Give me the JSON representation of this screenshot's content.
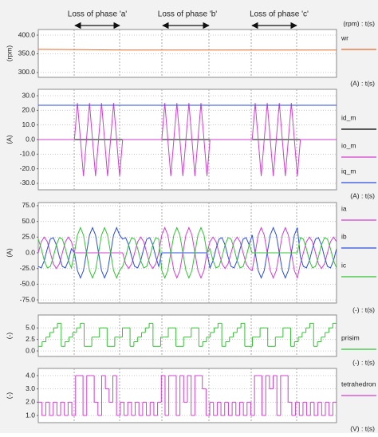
{
  "annotations": [
    "Loss of phase 'a'",
    "Loss of phase 'b'",
    "Loss of phase 'c'"
  ],
  "footer_label": "(V) : t(s)",
  "chart_data": [
    {
      "type": "line",
      "unit_label": "(rpm) : t(s)",
      "ylabel": "(rpm)",
      "ylim": [
        287,
        415
      ],
      "yticks": [
        {
          "value": 400,
          "label": "400.0"
        },
        {
          "value": 350,
          "label": "350.0"
        },
        {
          "value": 300,
          "label": "300.0"
        }
      ],
      "grid": true,
      "series": [
        {
          "name": "wr",
          "color": "#e8692a",
          "values": [
            362,
            361,
            360,
            360,
            360,
            360,
            360,
            360
          ]
        }
      ]
    },
    {
      "type": "line",
      "unit_label": "(A) : t(s)",
      "ylabel": "(A)",
      "ylim": [
        -34.4,
        34.4
      ],
      "yticks": [
        {
          "value": 30,
          "label": "30.0"
        },
        {
          "value": 20,
          "label": "20.0"
        },
        {
          "value": 10,
          "label": "10.0"
        },
        {
          "value": 0,
          "label": "0.0"
        },
        {
          "value": -10,
          "label": "-10.0"
        },
        {
          "value": -20,
          "label": "-20.0"
        },
        {
          "value": -30,
          "label": "-30.0"
        }
      ],
      "grid": true,
      "series": [
        {
          "name": "id_m",
          "color": "#000000",
          "values": [
            0,
            0
          ]
        },
        {
          "name": "io_m",
          "color": "#d23fd2",
          "values": [
            0,
            0,
            0,
            0,
            0,
            0,
            0,
            0,
            0,
            0,
            0,
            0,
            0,
            25,
            0,
            -25,
            0,
            25,
            0,
            -25,
            0,
            25,
            0,
            -25,
            0,
            25,
            0,
            -25,
            0,
            0,
            0,
            0,
            0,
            0,
            0,
            0,
            0,
            0,
            0,
            0,
            0,
            0,
            25,
            0,
            -25,
            0,
            25,
            0,
            -25,
            0,
            25,
            0,
            -25,
            0,
            25,
            0,
            -25,
            0,
            0,
            0,
            0,
            0,
            0,
            0,
            0,
            0,
            0,
            0,
            0,
            0,
            0,
            0,
            25,
            0,
            -25,
            0,
            25,
            0,
            -25,
            0,
            25,
            0,
            -25,
            0,
            25,
            0,
            -25,
            0,
            0,
            0,
            0,
            0,
            0,
            0,
            0,
            0,
            0,
            0,
            0,
            0
          ]
        },
        {
          "name": "iq_m",
          "color": "#2b4ee0",
          "values": [
            23.5,
            23.5
          ]
        }
      ]
    },
    {
      "type": "line",
      "unit_label": "(A) : t(s)",
      "ylabel": "(A)",
      "ylim": [
        -80,
        80
      ],
      "yticks": [
        {
          "value": 75,
          "label": "75.0"
        },
        {
          "value": 50,
          "label": "50.0"
        },
        {
          "value": 25,
          "label": "25.0"
        },
        {
          "value": 0,
          "label": "0.0"
        },
        {
          "value": -25,
          "label": "-25.0"
        },
        {
          "value": -50,
          "label": "-50.0"
        },
        {
          "value": -75,
          "label": "-75.0"
        }
      ],
      "grid": true,
      "series": [
        {
          "name": "ia",
          "color": "#d23fd2",
          "values": [
            0,
            17.7,
            25,
            17.7,
            0,
            -17.7,
            -25,
            -17.7,
            0,
            17.7,
            25,
            17.7,
            0,
            0,
            0,
            0,
            0,
            0,
            0,
            0,
            0,
            0,
            0,
            0,
            0,
            0,
            0,
            0,
            0,
            -17.7,
            -25,
            -17.7,
            0,
            17.7,
            25,
            17.7,
            0,
            -17.7,
            -25,
            -17.7,
            0,
            28.3,
            40,
            28.3,
            0,
            -28.3,
            -40,
            -28.3,
            0,
            28.3,
            40,
            28.3,
            0,
            -28.3,
            -40,
            -28.3,
            0,
            17.7,
            25,
            17.7,
            0,
            -17.7,
            -25,
            -17.7,
            0,
            17.7,
            25,
            17.7,
            0,
            -17.7,
            -25,
            -28.3,
            0,
            28.3,
            40,
            28.3,
            0,
            -28.3,
            -40,
            -28.3,
            0,
            28.3,
            40,
            28.3,
            0,
            -28.3,
            -40,
            -17.7,
            0,
            17.7,
            25,
            17.7,
            0,
            -17.7,
            -25,
            -17.7,
            0,
            17.7,
            25,
            17.7
          ]
        },
        {
          "name": "ib",
          "color": "#2b4ee0",
          "values": [
            -21.7,
            -24.1,
            -12.5,
            6.5,
            21.7,
            24.1,
            12.5,
            -6.5,
            -21.7,
            -24.1,
            -12.5,
            6.5,
            0,
            -28.3,
            -40,
            -28.3,
            0,
            28.3,
            40,
            28.3,
            0,
            -28.3,
            -40,
            -28.3,
            0,
            28.3,
            40,
            28.3,
            21.7,
            24.1,
            12.5,
            -6.5,
            -21.7,
            -24.1,
            -12.5,
            6.5,
            21.7,
            24.1,
            12.5,
            -6.5,
            -21.7,
            0,
            0,
            0,
            0,
            0,
            0,
            0,
            0,
            0,
            0,
            0,
            0,
            0,
            0,
            0,
            0,
            -24.1,
            -12.5,
            6.5,
            21.7,
            24.1,
            12.5,
            -6.5,
            -21.7,
            -24.1,
            -12.5,
            6.5,
            21.7,
            24.1,
            12.5,
            28.3,
            0,
            -28.3,
            -40,
            -28.3,
            0,
            28.3,
            40,
            28.3,
            0,
            -28.3,
            -40,
            -28.3,
            0,
            28.3,
            40,
            -6.5,
            -21.7,
            -24.1,
            -12.5,
            6.5,
            21.7,
            24.1,
            12.5,
            -6.5,
            -21.7,
            -24.1,
            -12.5,
            6.5
          ]
        },
        {
          "name": "ic",
          "color": "#33c233",
          "values": [
            21.7,
            6.5,
            -12.5,
            -24.1,
            -21.7,
            -6.5,
            12.5,
            24.1,
            21.7,
            6.5,
            -12.5,
            -24.1,
            0,
            28.3,
            40,
            28.3,
            0,
            -28.3,
            -40,
            -28.3,
            0,
            28.3,
            40,
            28.3,
            0,
            -28.3,
            -40,
            -28.3,
            -21.7,
            -6.5,
            12.5,
            24.1,
            21.7,
            6.5,
            -12.5,
            -24.1,
            -21.7,
            -6.5,
            12.5,
            24.1,
            21.7,
            -28.3,
            -40,
            -28.3,
            0,
            28.3,
            40,
            28.3,
            0,
            -28.3,
            -40,
            -28.3,
            0,
            28.3,
            40,
            28.3,
            0,
            6.5,
            -12.5,
            -24.1,
            -21.7,
            -6.5,
            12.5,
            24.1,
            21.7,
            6.5,
            -12.5,
            -24.1,
            -21.7,
            -6.5,
            12.5,
            0,
            0,
            0,
            0,
            0,
            0,
            0,
            0,
            0,
            0,
            0,
            0,
            0,
            0,
            0,
            0,
            24.1,
            21.7,
            6.5,
            -12.5,
            -24.1,
            -21.7,
            -6.5,
            12.5,
            24.1,
            21.7,
            6.5,
            -12.5,
            -24.1
          ]
        }
      ]
    },
    {
      "type": "step",
      "unit_label": "(-) : t(s)",
      "ylabel": "(-)",
      "ylim": [
        -1.2,
        7.8
      ],
      "yticks": [
        {
          "value": 5,
          "label": "5.0"
        },
        {
          "value": 2.5,
          "label": "2.5"
        },
        {
          "value": 0,
          "label": "0.0"
        }
      ],
      "grid": true,
      "series": [
        {
          "name": "prisim",
          "color": "#33c233",
          "values": [
            1,
            2,
            3,
            4,
            5,
            6,
            1,
            2,
            3,
            4,
            5,
            6,
            1,
            1,
            3,
            3,
            5,
            5,
            1,
            1,
            3,
            3,
            5,
            5,
            1,
            2,
            3,
            4,
            5,
            6,
            1,
            1,
            3,
            3,
            5,
            5,
            1,
            1,
            3,
            3,
            5,
            5,
            1,
            2,
            3,
            4,
            5,
            6,
            1,
            2,
            3,
            4,
            5,
            6,
            1,
            1,
            3,
            3,
            5,
            5,
            1,
            1,
            3,
            3,
            5,
            5,
            1,
            2,
            3,
            4,
            5,
            6,
            1,
            2,
            3,
            4,
            5,
            6
          ]
        }
      ]
    },
    {
      "type": "step",
      "unit_label": "(-) : t(s)",
      "ylabel": "(-)",
      "ylim": [
        0.46,
        4.54
      ],
      "yticks": [
        {
          "value": 4,
          "label": "4.0"
        },
        {
          "value": 3,
          "label": "3.0"
        },
        {
          "value": 2,
          "label": "2.0"
        },
        {
          "value": 1,
          "label": "1.0"
        }
      ],
      "grid": true,
      "series": [
        {
          "name": "tetrahedron",
          "color": "#d23fd2",
          "values": [
            2,
            1,
            2,
            1,
            2,
            1,
            2,
            1,
            2,
            1,
            4,
            4,
            1,
            4,
            4,
            2,
            1,
            4,
            3,
            2,
            4,
            1,
            2,
            1,
            2,
            1,
            2,
            1,
            2,
            1,
            2,
            1,
            2,
            4,
            1,
            4,
            4,
            1,
            4,
            2,
            4,
            1,
            4,
            4,
            3,
            1,
            2,
            1,
            2,
            1,
            2,
            1,
            2,
            1,
            2,
            1,
            2,
            1,
            4,
            4,
            1,
            4,
            3,
            4,
            1,
            4,
            4,
            2,
            1,
            2,
            1,
            2,
            1,
            2,
            1,
            2,
            1,
            2,
            1,
            2
          ]
        }
      ]
    }
  ]
}
